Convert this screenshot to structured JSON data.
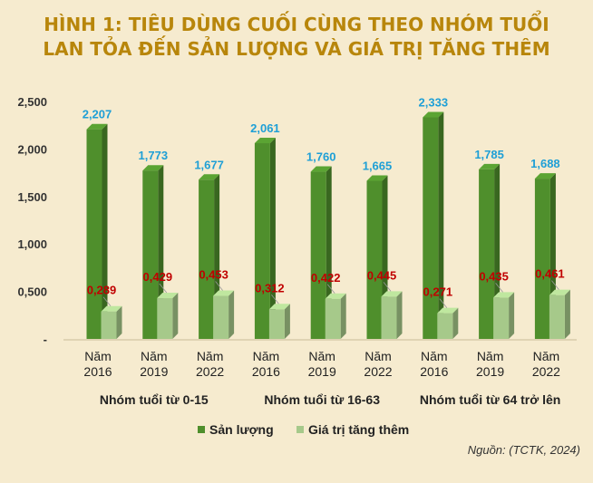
{
  "title": {
    "line1": "HÌNH 1: TIÊU DÙNG CUỐI CÙNG THEO NHÓM TUỔI",
    "line2": "LAN TỎA ĐẾN SẢN LƯỢNG VÀ GIÁ TRỊ TĂNG THÊM"
  },
  "source": "Nguồn: (TCTK, 2024)",
  "colors": {
    "background": "#f6ebcf",
    "title": "#b8860b",
    "series1": "#4f8f2c",
    "series2": "#a6c98a",
    "label1": "#1e9fd6",
    "label2": "#c00000"
  },
  "chart_data": {
    "type": "bar",
    "y_ticks": [
      "-",
      "0,500",
      "1,000",
      "1,500",
      "2,000",
      "2,500"
    ],
    "ylim": [
      0,
      2.5
    ],
    "grid": false,
    "legend_position": "bottom",
    "groups": [
      {
        "label": "Nhóm tuổi từ 0-15",
        "years": [
          "Năm\n2016",
          "Năm\n2019",
          "Năm\n2022"
        ]
      },
      {
        "label": "Nhóm tuổi từ 16-63",
        "years": [
          "Năm\n2016",
          "Năm\n2019",
          "Năm\n2022"
        ]
      },
      {
        "label": "Nhóm tuổi từ 64 trở lên",
        "years": [
          "Năm\n2016",
          "Năm\n2019",
          "Năm\n2022"
        ]
      }
    ],
    "series": [
      {
        "name": "Sản lượng",
        "values": [
          2.207,
          1.773,
          1.677,
          2.061,
          1.76,
          1.665,
          2.333,
          1.785,
          1.688
        ],
        "labels": [
          "2,207",
          "1,773",
          "1,677",
          "2,061",
          "1,760",
          "1,665",
          "2,333",
          "1,785",
          "1,688"
        ]
      },
      {
        "name": "Giá trị tăng thêm",
        "values": [
          0.289,
          0.429,
          0.453,
          0.312,
          0.422,
          0.445,
          0.271,
          0.435,
          0.461
        ],
        "labels": [
          "0,289",
          "0,429",
          "0,453",
          "0,312",
          "0,422",
          "0,445",
          "0,271",
          "0,435",
          "0,461"
        ]
      }
    ]
  }
}
